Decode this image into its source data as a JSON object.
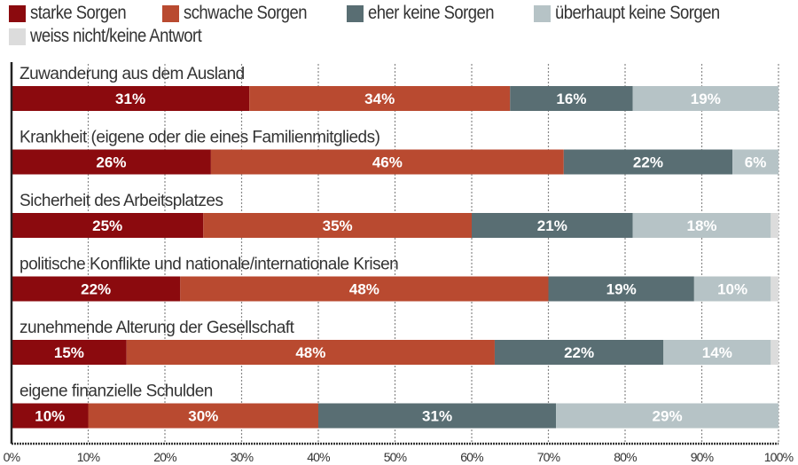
{
  "chart_data": {
    "type": "bar",
    "orientation": "horizontal",
    "stacked": true,
    "title": "",
    "xlabel": "",
    "ylabel": "",
    "xlim": [
      0,
      100
    ],
    "x_tick_labels": [
      "0%",
      "10%",
      "20%",
      "30%",
      "40%",
      "50%",
      "60%",
      "70%",
      "80%",
      "90%",
      "100%"
    ],
    "grid": true,
    "legend_position": "top",
    "categories": [
      "Zuwanderung aus dem Ausland",
      "Krankheit (eigene oder die eines Familienmitglieds)",
      "Sicherheit des Arbeitsplatzes",
      "politische Konflikte und nationale/internationale Krisen",
      "zunehmende Alterung der Gesellschaft",
      "eigene finanzielle Schulden"
    ],
    "series": [
      {
        "name": "starke Sorgen",
        "color": "#8b0a0e",
        "values": [
          31,
          26,
          25,
          22,
          15,
          10
        ]
      },
      {
        "name": "schwache Sorgen",
        "color": "#b94a30",
        "values": [
          34,
          46,
          35,
          48,
          48,
          30
        ]
      },
      {
        "name": "eher keine Sorgen",
        "color": "#596e73",
        "values": [
          16,
          22,
          21,
          19,
          22,
          31
        ]
      },
      {
        "name": "überhaupt keine Sorgen",
        "color": "#b6c3c6",
        "values": [
          19,
          6,
          18,
          10,
          14,
          29
        ]
      },
      {
        "name": "weiss nicht/keine Antwort",
        "color": "#dcdcdc",
        "values": [
          0,
          0,
          1,
          1,
          1,
          0
        ]
      }
    ],
    "value_labels": [
      [
        "31%",
        "34%",
        "16%",
        "19%",
        ""
      ],
      [
        "26%",
        "46%",
        "22%",
        "6%",
        ""
      ],
      [
        "25%",
        "35%",
        "21%",
        "18%",
        ""
      ],
      [
        "22%",
        "48%",
        "19%",
        "10%",
        ""
      ],
      [
        "15%",
        "48%",
        "22%",
        "14%",
        ""
      ],
      [
        "10%",
        "30%",
        "31%",
        "29%",
        ""
      ]
    ]
  },
  "legend": {
    "row1": [
      {
        "label": "starke Sorgen",
        "color": "#8b0a0e"
      },
      {
        "label": "schwache Sorgen",
        "color": "#b94a30"
      },
      {
        "label": "eher keine Sorgen",
        "color": "#596e73"
      },
      {
        "label": "überhaupt keine Sorgen",
        "color": "#b6c3c6"
      }
    ],
    "row2": [
      {
        "label": "weiss nicht/keine Antwort",
        "color": "#dcdcdc"
      }
    ]
  }
}
